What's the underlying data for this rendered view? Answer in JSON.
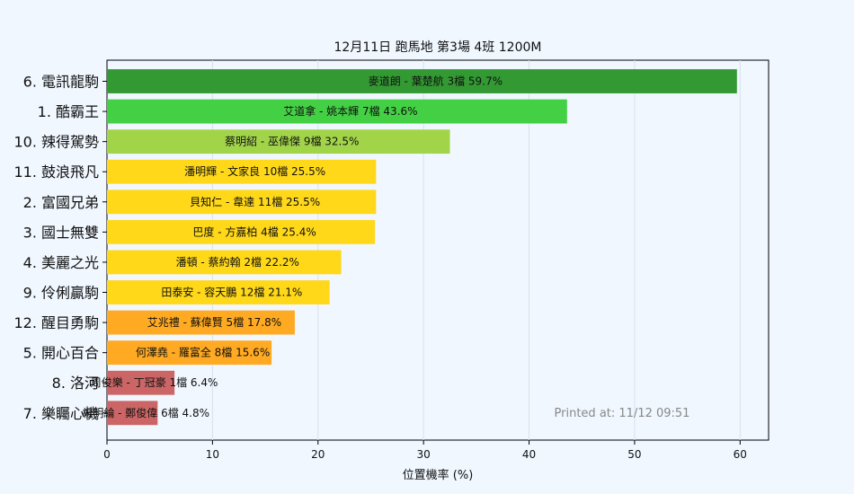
{
  "chart_data": {
    "type": "bar",
    "orientation": "horizontal",
    "title": "12月11日  跑馬地  第3場  4班  1200M",
    "xlabel": "位置機率 (%)",
    "ylabel": "",
    "xlim": [
      0,
      62.7
    ],
    "xticks": [
      "0",
      "10",
      "20",
      "30",
      "40",
      "50",
      "60"
    ],
    "grid": true,
    "categories": [
      "6. 電訊龍駒",
      "1. 酷霸王",
      "10. 辣得駕勢",
      "11. 鼓浪飛凡",
      "2. 富國兄弟",
      "3. 國士無雙",
      "4. 美麗之光",
      "9. 伶俐贏駒",
      "12. 醒目勇駒",
      "5. 開心百合",
      "8. 洛河",
      "7. 樂矚心機"
    ],
    "values": [
      59.7,
      43.6,
      32.5,
      25.5,
      25.5,
      25.4,
      22.2,
      21.1,
      17.8,
      15.6,
      6.4,
      4.8
    ],
    "bar_labels": [
      "麥道朗 - 葉楚航 3檔  59.7%",
      "艾道拿 - 姚本輝 7檔  43.6%",
      "蔡明紹 - 巫偉傑 9檔  32.5%",
      "潘明輝 - 文家良 10檔  25.5%",
      "貝知仁 - 韋達 11檔  25.5%",
      "巴度 - 方嘉柏 4檔  25.4%",
      "潘頓 - 蔡約翰 2檔  22.2%",
      "田泰安 - 容天鵬 12檔  21.1%",
      "艾兆禮 - 蘇偉賢 5檔  17.8%",
      "何澤堯 - 羅富全 8檔  15.6%",
      "周俊樂 - 丁冠豪 1檔  6.4%",
      "楊明綸 - 鄭俊偉 6檔  4.8%"
    ],
    "colors": [
      "#339933",
      "#44d044",
      "#a2d44a",
      "#ffd81a",
      "#ffd81a",
      "#ffd81a",
      "#ffd81a",
      "#ffd81a",
      "#ffaa22",
      "#ffaa22",
      "#cc6666",
      "#cc6666"
    ],
    "annotation": "Printed at: 11/12 09:51"
  }
}
